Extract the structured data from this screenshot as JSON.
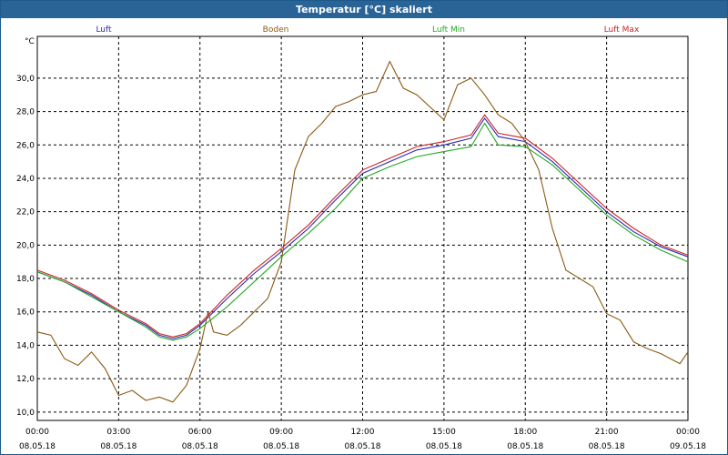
{
  "window": {
    "title": "Temperatur [°C] skaliert"
  },
  "chart_data": {
    "type": "line",
    "title": "Temperatur [°C] skaliert",
    "ylabel": "°C",
    "xlabel": "",
    "ylim": [
      9.5,
      32.5
    ],
    "xlim": [
      0,
      24
    ],
    "y_ticks": [
      "10,0",
      "12,0",
      "14,0",
      "16,0",
      "18,0",
      "20,0",
      "22,0",
      "24,0",
      "26,0",
      "28,0",
      "30,0"
    ],
    "x_ticks": [
      {
        "time": "00:00",
        "date": "08.05.18"
      },
      {
        "time": "03:00",
        "date": "08.05.18"
      },
      {
        "time": "06:00",
        "date": "08.05.18"
      },
      {
        "time": "09:00",
        "date": "08.05.18"
      },
      {
        "time": "12:00",
        "date": "08.05.18"
      },
      {
        "time": "15:00",
        "date": "08.05.18"
      },
      {
        "time": "18:00",
        "date": "08.05.18"
      },
      {
        "time": "21:00",
        "date": "08.05.18"
      },
      {
        "time": "00:00",
        "date": "09.05.18"
      }
    ],
    "grid": true,
    "series": [
      {
        "name": "Luft",
        "color": "#2a2ab4",
        "points": [
          [
            0,
            18.4
          ],
          [
            1,
            17.8
          ],
          [
            2,
            17.0
          ],
          [
            3,
            16.0
          ],
          [
            4,
            15.2
          ],
          [
            4.5,
            14.6
          ],
          [
            5,
            14.4
          ],
          [
            5.5,
            14.6
          ],
          [
            6,
            15.2
          ],
          [
            7,
            16.8
          ],
          [
            8,
            18.3
          ],
          [
            9,
            19.6
          ],
          [
            10,
            21.0
          ],
          [
            11,
            22.7
          ],
          [
            12,
            24.3
          ],
          [
            13,
            25.0
          ],
          [
            14,
            25.7
          ],
          [
            15,
            26.0
          ],
          [
            16,
            26.4
          ],
          [
            16.5,
            27.6
          ],
          [
            17,
            26.5
          ],
          [
            18,
            26.2
          ],
          [
            19,
            25.0
          ],
          [
            20,
            23.5
          ],
          [
            21,
            22.0
          ],
          [
            22,
            20.8
          ],
          [
            23,
            19.9
          ],
          [
            24,
            19.3
          ]
        ]
      },
      {
        "name": "Boden",
        "color": "#8b5a14",
        "points": [
          [
            0,
            14.8
          ],
          [
            0.5,
            14.6
          ],
          [
            1,
            13.2
          ],
          [
            1.5,
            12.8
          ],
          [
            2,
            13.6
          ],
          [
            2.5,
            12.6
          ],
          [
            3,
            11.0
          ],
          [
            3.5,
            11.3
          ],
          [
            4,
            10.7
          ],
          [
            4.5,
            10.9
          ],
          [
            5,
            10.6
          ],
          [
            5.5,
            11.6
          ],
          [
            6,
            13.8
          ],
          [
            6.3,
            16.0
          ],
          [
            6.5,
            14.8
          ],
          [
            7,
            14.6
          ],
          [
            7.5,
            15.2
          ],
          [
            8,
            16.0
          ],
          [
            8.5,
            16.8
          ],
          [
            9,
            19.0
          ],
          [
            9.5,
            24.5
          ],
          [
            10,
            26.5
          ],
          [
            10.5,
            27.3
          ],
          [
            11,
            28.3
          ],
          [
            11.5,
            28.6
          ],
          [
            12,
            29.0
          ],
          [
            12.5,
            29.2
          ],
          [
            13,
            31.0
          ],
          [
            13.5,
            29.4
          ],
          [
            14,
            29.0
          ],
          [
            15,
            27.5
          ],
          [
            15.5,
            29.6
          ],
          [
            16,
            30.0
          ],
          [
            16.5,
            29.0
          ],
          [
            17,
            27.8
          ],
          [
            17.5,
            27.3
          ],
          [
            18,
            26.2
          ],
          [
            18.5,
            24.5
          ],
          [
            19,
            21.0
          ],
          [
            19.5,
            18.5
          ],
          [
            20,
            18.0
          ],
          [
            20.5,
            17.5
          ],
          [
            21,
            15.9
          ],
          [
            21.5,
            15.5
          ],
          [
            22,
            14.2
          ],
          [
            22.5,
            13.8
          ],
          [
            23,
            13.5
          ],
          [
            23.7,
            12.9
          ],
          [
            24,
            13.6
          ]
        ]
      },
      {
        "name": "Luft Min",
        "color": "#22aa22",
        "points": [
          [
            0,
            18.4
          ],
          [
            1,
            17.8
          ],
          [
            2,
            16.9
          ],
          [
            3,
            16.0
          ],
          [
            4,
            15.1
          ],
          [
            4.5,
            14.5
          ],
          [
            5,
            14.3
          ],
          [
            5.5,
            14.5
          ],
          [
            6,
            15.0
          ],
          [
            7,
            16.3
          ],
          [
            8,
            17.8
          ],
          [
            9,
            19.3
          ],
          [
            10,
            20.7
          ],
          [
            11,
            22.2
          ],
          [
            12,
            24.0
          ],
          [
            13,
            24.7
          ],
          [
            14,
            25.3
          ],
          [
            15,
            25.6
          ],
          [
            16,
            25.9
          ],
          [
            16.5,
            27.3
          ],
          [
            17,
            26.0
          ],
          [
            18,
            25.9
          ],
          [
            19,
            24.8
          ],
          [
            20,
            23.3
          ],
          [
            21,
            21.8
          ],
          [
            22,
            20.6
          ],
          [
            23,
            19.7
          ],
          [
            24,
            19.0
          ]
        ]
      },
      {
        "name": "Luft Max",
        "color": "#cc2222",
        "points": [
          [
            0,
            18.5
          ],
          [
            1,
            17.9
          ],
          [
            2,
            17.1
          ],
          [
            3,
            16.1
          ],
          [
            4,
            15.3
          ],
          [
            4.5,
            14.7
          ],
          [
            5,
            14.5
          ],
          [
            5.5,
            14.7
          ],
          [
            6,
            15.3
          ],
          [
            7,
            17.0
          ],
          [
            8,
            18.5
          ],
          [
            9,
            19.8
          ],
          [
            10,
            21.2
          ],
          [
            11,
            22.9
          ],
          [
            12,
            24.5
          ],
          [
            13,
            25.2
          ],
          [
            14,
            25.9
          ],
          [
            15,
            26.2
          ],
          [
            16,
            26.6
          ],
          [
            16.5,
            27.8
          ],
          [
            17,
            26.7
          ],
          [
            18,
            26.4
          ],
          [
            19,
            25.2
          ],
          [
            20,
            23.7
          ],
          [
            21,
            22.2
          ],
          [
            22,
            21.0
          ],
          [
            23,
            20.0
          ],
          [
            24,
            19.4
          ]
        ]
      }
    ]
  }
}
